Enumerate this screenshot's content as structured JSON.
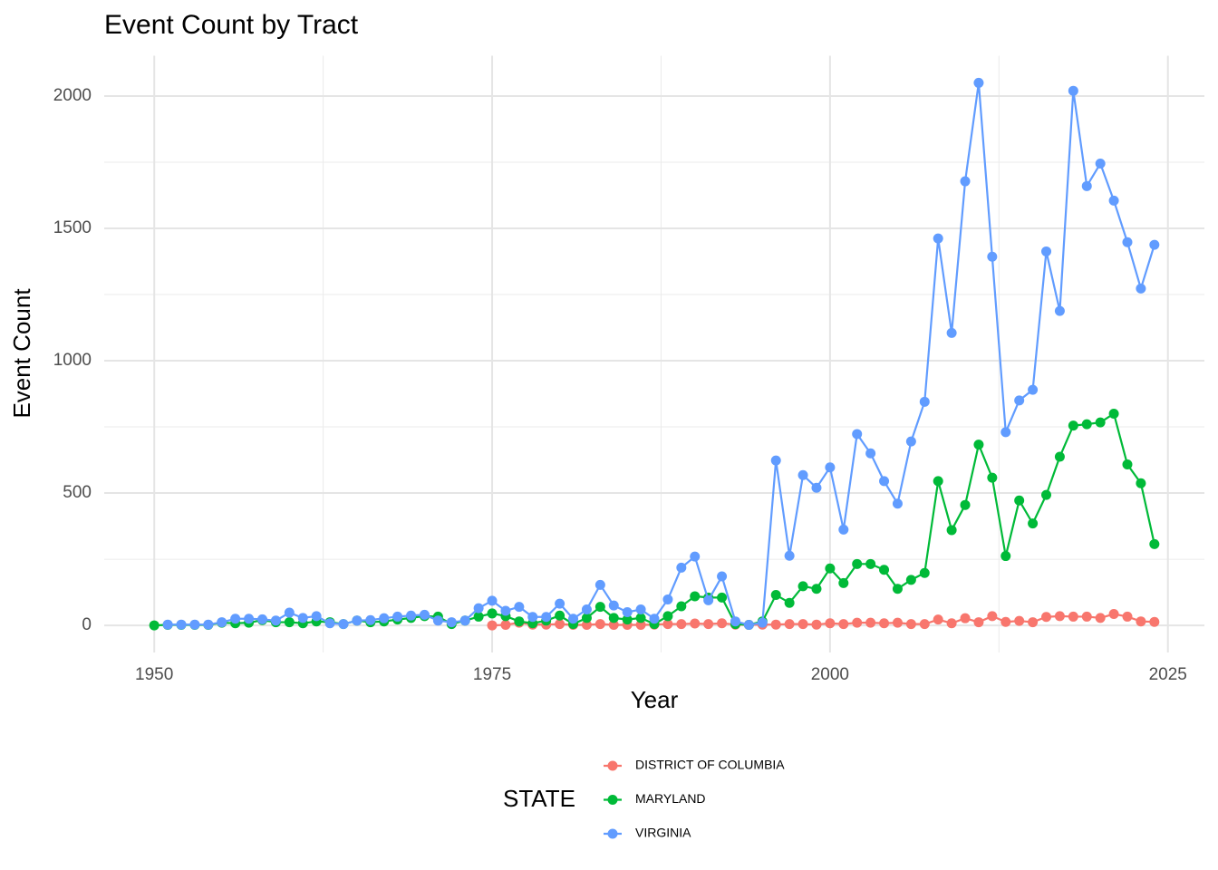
{
  "chart_data": {
    "type": "line",
    "title": "Event Count by Tract",
    "x_label": "Year",
    "y_label": "Event Count",
    "x": [
      1950,
      1951,
      1952,
      1953,
      1954,
      1955,
      1956,
      1957,
      1958,
      1959,
      1960,
      1961,
      1962,
      1963,
      1964,
      1965,
      1966,
      1967,
      1968,
      1969,
      1970,
      1971,
      1972,
      1973,
      1974,
      1975,
      1976,
      1977,
      1978,
      1979,
      1980,
      1981,
      1982,
      1983,
      1984,
      1985,
      1986,
      1987,
      1988,
      1989,
      1990,
      1991,
      1992,
      1993,
      1994,
      1995,
      1996,
      1997,
      1998,
      1999,
      2000,
      2001,
      2002,
      2003,
      2004,
      2005,
      2006,
      2007,
      2008,
      2009,
      2010,
      2011,
      2012,
      2013,
      2014,
      2015,
      2016,
      2017,
      2018,
      2019,
      2020,
      2021,
      2022,
      2023,
      2024
    ],
    "series": [
      {
        "name": "DISTRICT OF COLUMBIA",
        "color": "#F8766D",
        "values": [
          null,
          null,
          null,
          null,
          null,
          null,
          null,
          null,
          null,
          null,
          null,
          null,
          null,
          null,
          null,
          null,
          null,
          null,
          null,
          null,
          null,
          null,
          null,
          null,
          null,
          0,
          2,
          10,
          3,
          3,
          5,
          2,
          2,
          5,
          2,
          2,
          2,
          3,
          5,
          5,
          7,
          5,
          8,
          3,
          2,
          3,
          3,
          5,
          5,
          3,
          8,
          5,
          10,
          10,
          8,
          10,
          5,
          5,
          22,
          8,
          27,
          12,
          35,
          13,
          17,
          12,
          32,
          35,
          33,
          33,
          28,
          43,
          33,
          15,
          13
        ]
      },
      {
        "name": "MARYLAND",
        "color": "#00BA38",
        "values": [
          0,
          2,
          2,
          2,
          2,
          10,
          8,
          10,
          20,
          12,
          12,
          8,
          15,
          12,
          5,
          18,
          12,
          15,
          22,
          28,
          35,
          33,
          5,
          18,
          33,
          45,
          35,
          15,
          8,
          18,
          37,
          5,
          28,
          70,
          28,
          22,
          28,
          5,
          35,
          72,
          110,
          105,
          105,
          5,
          2,
          15,
          115,
          85,
          148,
          138,
          215,
          160,
          232,
          232,
          210,
          138,
          172,
          198,
          545,
          360,
          455,
          683,
          558,
          262,
          472,
          385,
          493,
          637,
          755,
          760,
          767,
          800,
          608,
          537,
          307
        ]
      },
      {
        "name": "VIRGINIA",
        "color": "#619CFF",
        "values": [
          null,
          3,
          3,
          3,
          3,
          12,
          25,
          25,
          23,
          18,
          48,
          28,
          35,
          8,
          5,
          18,
          20,
          27,
          33,
          37,
          40,
          18,
          12,
          18,
          65,
          93,
          55,
          70,
          32,
          32,
          82,
          25,
          60,
          153,
          75,
          50,
          60,
          25,
          98,
          218,
          260,
          95,
          185,
          15,
          2,
          10,
          623,
          263,
          568,
          520,
          597,
          362,
          723,
          650,
          545,
          460,
          695,
          845,
          1462,
          1105,
          1678,
          2050,
          1393,
          730,
          850,
          890,
          1413,
          1188,
          2020,
          1660,
          1745,
          1605,
          1448,
          1273,
          1438
        ]
      }
    ],
    "xlim": [
      1946.3,
      2027.7
    ],
    "ylim": [
      -102.5,
      2152.5
    ],
    "xticks": [
      1950,
      1975,
      2000,
      2025
    ],
    "yticks": [
      0,
      500,
      1000,
      1500,
      2000
    ],
    "xminor_ticks": [
      1962.5,
      1987.5,
      2012.5
    ],
    "yminor_ticks": [
      250,
      750,
      1250,
      1750
    ],
    "grid": true,
    "legend_title": "STATE",
    "legend_position": "bottom"
  }
}
